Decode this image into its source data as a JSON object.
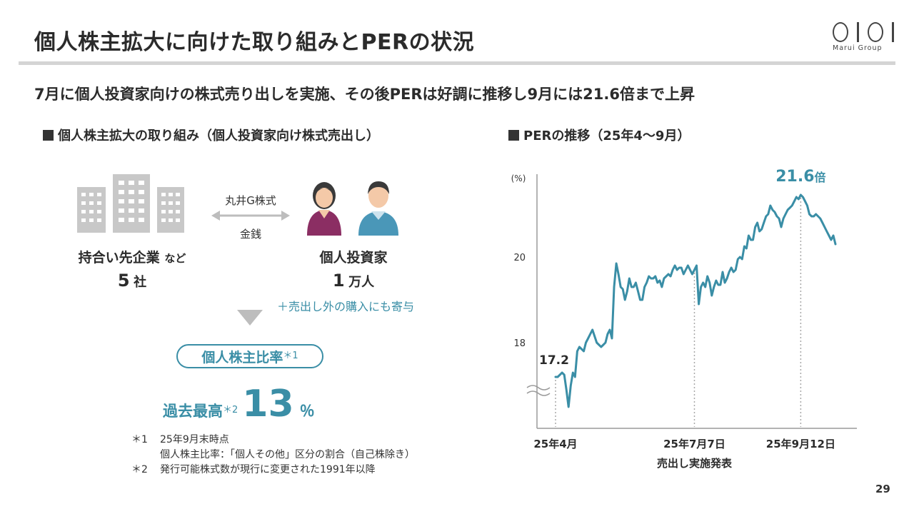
{
  "header": {
    "title": "個人株主拡大に向けた取り組みとPERの状況",
    "logo_text": "Marui Group"
  },
  "headline": "7月に個人投資家向けの株式売り出しを実施、その後PERは好調に推移し9月には21.6倍まで上昇",
  "left": {
    "section_title": "個人株主拡大の取り組み（個人投資家向け株式売出し）",
    "arrow_top_label": "丸井G株式",
    "arrow_bottom_label": "金銭",
    "companies_label": "持合い先企業",
    "companies_suffix": "など",
    "companies_count": "5",
    "companies_unit": "社",
    "investors_label": "個人投資家",
    "investors_count": "1",
    "investors_unit": "万人",
    "extra_note": "＋売出し外の購入にも寄与",
    "ratio_label": "個人株主比率",
    "ratio_note_mark": "＊1",
    "record_label": "過去最高",
    "record_note_mark": "＊2",
    "record_value": "13",
    "record_unit": "％",
    "notes": [
      {
        "mark": "＊1",
        "text": "25年9月末時点"
      },
      {
        "mark": "",
        "text": "個人株主比率：「個人その他」区分の割合（自己株除き）"
      },
      {
        "mark": "＊2",
        "text": "発行可能株式数が現行に変更された1991年以降"
      }
    ]
  },
  "right": {
    "section_title": "PERの推移（25年4〜9月）"
  },
  "chart_data": {
    "type": "line",
    "title": "",
    "xlabel": "",
    "ylabel": "(%)",
    "ylim": [
      16.0,
      22.0
    ],
    "yticks": [
      18,
      20
    ],
    "axis_break": true,
    "x_ticks": [
      {
        "index": 0,
        "label": "25年4月",
        "sublabel": ""
      },
      {
        "index": 64,
        "label": "25年7月7日",
        "sublabel": "売出し実施発表"
      },
      {
        "index": 113,
        "label": "25年9月12日",
        "sublabel": ""
      }
    ],
    "annotations": [
      {
        "index": 0,
        "text": "17.2",
        "color": "#2b2b2b"
      },
      {
        "index": 113,
        "text": "21.6",
        "suffix": "倍",
        "color": "#3a8ea6"
      }
    ],
    "series": [
      {
        "name": "",
        "color": "#3a8ea6",
        "values": [
          17.2,
          17.2,
          17.25,
          17.3,
          17.25,
          16.9,
          16.5,
          17.0,
          17.3,
          17.2,
          17.8,
          17.9,
          17.85,
          17.8,
          18.0,
          18.1,
          18.2,
          18.3,
          18.15,
          18.0,
          17.95,
          17.9,
          17.95,
          18.0,
          18.2,
          18.3,
          18.1,
          19.3,
          19.85,
          19.6,
          19.3,
          19.25,
          19.0,
          19.2,
          19.5,
          19.3,
          19.3,
          19.4,
          19.2,
          19.0,
          19.0,
          19.3,
          19.4,
          19.55,
          19.5,
          19.5,
          19.55,
          19.4,
          19.45,
          19.3,
          19.5,
          19.55,
          19.6,
          19.55,
          19.7,
          19.8,
          19.7,
          19.75,
          19.75,
          19.6,
          19.7,
          19.8,
          19.7,
          19.6,
          19.7,
          19.8,
          18.9,
          19.3,
          19.4,
          19.3,
          19.55,
          19.4,
          19.1,
          19.3,
          19.45,
          19.35,
          19.35,
          19.65,
          19.4,
          19.5,
          19.65,
          19.75,
          19.65,
          19.7,
          19.95,
          20.0,
          19.95,
          20.25,
          20.2,
          20.5,
          20.4,
          20.4,
          20.7,
          20.8,
          20.6,
          20.65,
          20.8,
          20.95,
          21.0,
          21.2,
          21.1,
          21.05,
          20.95,
          20.9,
          20.7,
          20.9,
          21.0,
          21.1,
          21.15,
          21.2,
          21.3,
          21.4,
          21.35,
          21.45,
          21.4,
          21.3,
          21.2,
          21.0,
          20.95,
          20.95,
          21.0,
          20.95,
          20.9,
          20.8,
          20.7,
          20.6,
          20.5,
          20.4,
          20.5,
          20.3
        ]
      }
    ]
  }
}
